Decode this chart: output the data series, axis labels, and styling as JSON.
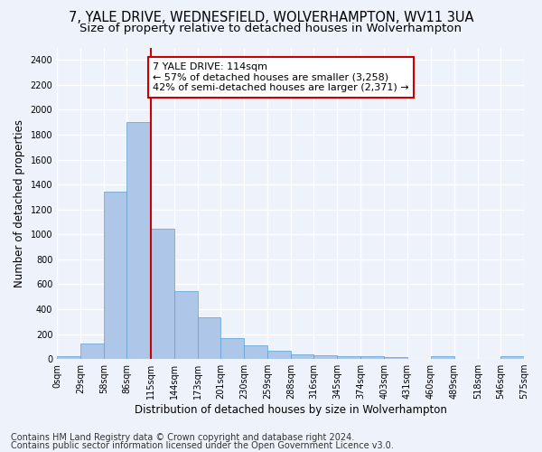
{
  "title_line1": "7, YALE DRIVE, WEDNESFIELD, WOLVERHAMPTON, WV11 3UA",
  "title_line2": "Size of property relative to detached houses in Wolverhampton",
  "xlabel": "Distribution of detached houses by size in Wolverhampton",
  "ylabel": "Number of detached properties",
  "bar_values": [
    20,
    125,
    1345,
    1900,
    1045,
    545,
    335,
    170,
    110,
    65,
    40,
    30,
    25,
    20,
    15,
    0,
    20,
    0,
    0,
    20
  ],
  "bin_edges": [
    0,
    29,
    58,
    86,
    115,
    144,
    173,
    201,
    230,
    259,
    288,
    316,
    345,
    374,
    403,
    431,
    460,
    489,
    518,
    546,
    575
  ],
  "tick_labels": [
    "0sqm",
    "29sqm",
    "58sqm",
    "86sqm",
    "115sqm",
    "144sqm",
    "173sqm",
    "201sqm",
    "230sqm",
    "259sqm",
    "288sqm",
    "316sqm",
    "345sqm",
    "374sqm",
    "403sqm",
    "431sqm",
    "460sqm",
    "489sqm",
    "518sqm",
    "546sqm",
    "575sqm"
  ],
  "bar_color": "#aec6e8",
  "bar_edge_color": "#5a9fd4",
  "vline_x": 115,
  "vline_color": "#cc0000",
  "annotation_text": "7 YALE DRIVE: 114sqm\n← 57% of detached houses are smaller (3,258)\n42% of semi-detached houses are larger (2,371) →",
  "annotation_box_color": "#ffffff",
  "annotation_box_edge": "#cc0000",
  "ylim": [
    0,
    2500
  ],
  "yticks": [
    0,
    200,
    400,
    600,
    800,
    1000,
    1200,
    1400,
    1600,
    1800,
    2000,
    2200,
    2400
  ],
  "footer_line1": "Contains HM Land Registry data © Crown copyright and database right 2024.",
  "footer_line2": "Contains public sector information licensed under the Open Government Licence v3.0.",
  "bg_color": "#eef2fb",
  "grid_color": "#ffffff",
  "title_fontsize": 10.5,
  "subtitle_fontsize": 9.5,
  "axis_label_fontsize": 8.5,
  "tick_fontsize": 7,
  "footer_fontsize": 7,
  "annotation_fontsize": 8
}
